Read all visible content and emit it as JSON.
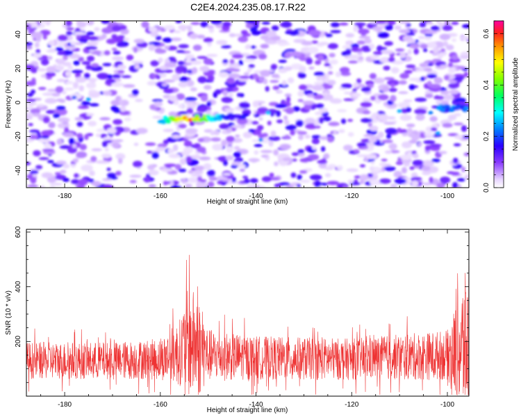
{
  "title": "C2E4.2024.235.08.17.R22",
  "chart_data": [
    {
      "type": "heatmap",
      "xlabel": "Height of straight line (km)",
      "ylabel": "Frequency (Hz)",
      "xlim": [
        -188,
        -95.5
      ],
      "ylim": [
        -50,
        48
      ],
      "xticks": [
        -180,
        -160,
        -140,
        -120,
        -100
      ],
      "yticks": [
        -40,
        -20,
        0,
        20,
        40
      ],
      "colorbar": {
        "label": "Normalized spectral amplitude",
        "range": [
          0.0,
          0.65
        ],
        "ticks": [
          0.0,
          0.2,
          0.4,
          0.6
        ],
        "tick_labels": [
          "0.0",
          "0.2",
          "0.4",
          "0.6"
        ]
      },
      "features": [
        {
          "name": "main-echo-trace",
          "x_range": [
            -160,
            -142
          ],
          "freq_center": -9,
          "peak_amplitude": 0.65,
          "peak_x": -154
        },
        {
          "name": "right-edge-echo",
          "x_range": [
            -102,
            -96
          ],
          "freq_center": -3,
          "peak_amplitude": 0.25
        }
      ]
    },
    {
      "type": "line",
      "xlabel": "Height of straight line (km)",
      "ylabel": "SNR (10 * v/v)",
      "xlim": [
        -188,
        -95.5
      ],
      "ylim": [
        0,
        610
      ],
      "xticks": [
        -180,
        -160,
        -140,
        -120,
        -100
      ],
      "yticks": [
        200,
        400,
        600
      ],
      "series": [
        {
          "name": "SNR",
          "color": "#ee3333",
          "envelope": [
            {
              "x": -188,
              "base": 130,
              "spread": 85
            },
            {
              "x": -170,
              "base": 130,
              "spread": 85
            },
            {
              "x": -160,
              "base": 135,
              "spread": 95
            },
            {
              "x": -156,
              "base": 160,
              "spread": 150
            },
            {
              "x": -154,
              "base": 200,
              "spread": 260
            },
            {
              "x": -152,
              "base": 180,
              "spread": 230
            },
            {
              "x": -150,
              "base": 150,
              "spread": 120
            },
            {
              "x": -140,
              "base": 140,
              "spread": 100
            },
            {
              "x": -120,
              "base": 135,
              "spread": 95
            },
            {
              "x": -100,
              "base": 150,
              "spread": 115
            },
            {
              "x": -95.5,
              "base": 190,
              "spread": 380
            }
          ]
        }
      ]
    }
  ]
}
